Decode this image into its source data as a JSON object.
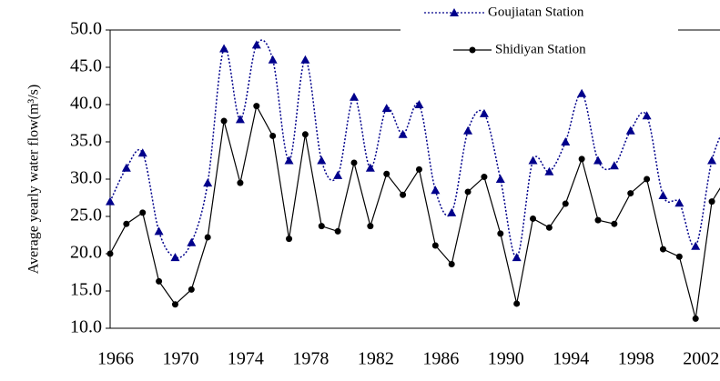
{
  "chart_data": {
    "type": "line",
    "y_label": "Average yearly water flow(m³/s)",
    "x": [
      1966,
      1967,
      1968,
      1969,
      1970,
      1971,
      1972,
      1973,
      1974,
      1975,
      1976,
      1977,
      1978,
      1979,
      1980,
      1981,
      1982,
      1983,
      1984,
      1985,
      1986,
      1987,
      1988,
      1989,
      1990,
      1991,
      1992,
      1993,
      1994,
      1995,
      1996,
      1997,
      1998,
      1999,
      2000,
      2001,
      2002,
      2003,
      2004
    ],
    "series": [
      {
        "name": "Goujiatan Station",
        "color": "#00008b",
        "smooth": true,
        "dash": "dotted",
        "marker": "triangle",
        "values": [
          27.0,
          31.5,
          33.5,
          23.0,
          19.5,
          21.5,
          29.5,
          47.5,
          38.0,
          48.0,
          46.0,
          32.5,
          46.0,
          32.5,
          30.5,
          41.0,
          31.5,
          39.5,
          36.0,
          40.0,
          28.5,
          25.5,
          36.5,
          38.8,
          30.0,
          19.5,
          32.5,
          31.0,
          35.0,
          41.5,
          32.5,
          31.8,
          36.5,
          38.5,
          27.8,
          26.8,
          21.0,
          32.5,
          38.0
        ]
      },
      {
        "name": "Shidiyan Station",
        "color": "#000000",
        "smooth": false,
        "dash": "solid",
        "marker": "circle",
        "values": [
          20.0,
          24.0,
          25.5,
          16.3,
          13.2,
          15.2,
          22.2,
          37.8,
          29.5,
          39.8,
          35.8,
          22.0,
          36.0,
          23.7,
          23.0,
          32.2,
          23.7,
          30.7,
          27.9,
          31.3,
          21.1,
          18.6,
          28.3,
          30.3,
          22.7,
          13.3,
          24.7,
          23.5,
          26.7,
          32.7,
          24.5,
          24.0,
          28.1,
          30.0,
          20.6,
          19.6,
          11.3,
          27.0,
          30.5
        ]
      }
    ],
    "xlim": [
      1966,
      2003.5
    ],
    "xticks": [
      1966,
      1970,
      1974,
      1978,
      1982,
      1986,
      1990,
      1994,
      1998,
      2002
    ],
    "ylim": [
      10,
      50
    ],
    "yticks": [
      {
        "value": 10,
        "label": "10.0"
      },
      {
        "value": 15,
        "label": "15.0"
      },
      {
        "value": 20,
        "label": "20.0"
      },
      {
        "value": 25,
        "label": "25.0"
      },
      {
        "value": 30,
        "label": "30.0"
      },
      {
        "value": 35,
        "label": "35.0"
      },
      {
        "value": 40,
        "label": "40.0"
      },
      {
        "value": 45,
        "label": "45.0"
      },
      {
        "value": 50,
        "label": "50.0"
      }
    ],
    "legend": "top-right"
  }
}
